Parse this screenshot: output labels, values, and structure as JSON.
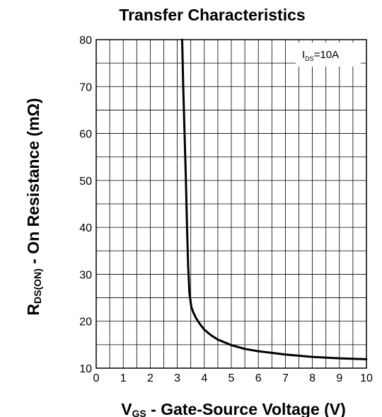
{
  "chart_data": {
    "type": "line",
    "title": "Transfer Characteristics",
    "xlabel": {
      "main": "V",
      "sub": "GS",
      "rest": " - Gate-Source Voltage (V)"
    },
    "ylabel": {
      "main": "R",
      "sub": "DS(ON)",
      "rest": " - On Resistance (mΩ)"
    },
    "annotation": {
      "main": "I",
      "sub": "DS",
      "rest": "=10A"
    },
    "xlim": [
      0,
      10
    ],
    "ylim": [
      10,
      80
    ],
    "x_ticks": [
      "0",
      "1",
      "2",
      "3",
      "4",
      "5",
      "6",
      "7",
      "8",
      "9",
      "10"
    ],
    "y_ticks": [
      "10",
      "20",
      "30",
      "40",
      "50",
      "60",
      "70",
      "80"
    ],
    "grid": true,
    "series": [
      {
        "x": [
          3.18,
          3.22,
          3.27,
          3.32,
          3.36,
          3.4,
          3.45,
          3.52,
          3.6,
          3.7,
          3.85,
          4.0,
          4.25,
          4.5,
          5.0,
          5.5,
          6.0,
          7.0,
          8.0,
          9.0,
          10.0
        ],
        "y": [
          80,
          70,
          60,
          50,
          40,
          32,
          26,
          23,
          21.8,
          20.6,
          19.3,
          18.2,
          17.0,
          16.1,
          14.9,
          14.1,
          13.6,
          12.9,
          12.4,
          12.1,
          11.9
        ]
      }
    ]
  },
  "colors": {
    "curve": "#000000",
    "grid": "#000000",
    "background": "#ffffff"
  }
}
